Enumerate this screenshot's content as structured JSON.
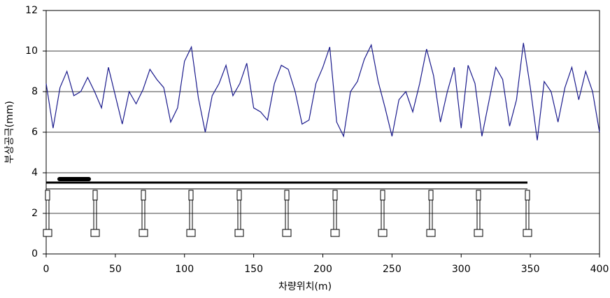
{
  "chart_data": {
    "type": "line",
    "x_label": "차량위치(m)",
    "y_label": "부상공극(mm)",
    "x": [
      0,
      5,
      10,
      15,
      20,
      25,
      30,
      35,
      40,
      45,
      50,
      55,
      60,
      65,
      70,
      75,
      80,
      85,
      90,
      95,
      100,
      105,
      110,
      115,
      120,
      125,
      130,
      135,
      140,
      145,
      150,
      155,
      160,
      165,
      170,
      175,
      180,
      185,
      190,
      195,
      200,
      205,
      210,
      215,
      220,
      225,
      230,
      235,
      240,
      245,
      250,
      255,
      260,
      265,
      270,
      275,
      280,
      285,
      290,
      295,
      300,
      305,
      310,
      315,
      320,
      325,
      330,
      335,
      340,
      345,
      350,
      355,
      360,
      365,
      370,
      375,
      380,
      385,
      390,
      395,
      400
    ],
    "series": [
      {
        "color": "#1a1a8c",
        "values": [
          8.4,
          6.2,
          8.2,
          9.0,
          7.8,
          8.0,
          8.7,
          8.0,
          7.2,
          9.2,
          7.8,
          6.4,
          8.0,
          7.4,
          8.1,
          9.1,
          8.6,
          8.2,
          6.5,
          7.2,
          9.5,
          10.2,
          7.7,
          6.0,
          7.8,
          8.4,
          9.3,
          7.8,
          8.4,
          9.4,
          7.2,
          7.0,
          6.6,
          8.4,
          9.3,
          9.1,
          8.0,
          6.4,
          6.6,
          8.4,
          9.2,
          10.2,
          6.5,
          5.8,
          8.0,
          8.5,
          9.6,
          10.3,
          8.5,
          7.2,
          5.8,
          7.6,
          8.0,
          7.0,
          8.4,
          10.1,
          8.8,
          6.5,
          8.0,
          9.2,
          6.2,
          9.3,
          8.4,
          5.8,
          7.5,
          9.2,
          8.6,
          6.3,
          7.6,
          10.4,
          8.2,
          5.6,
          8.5,
          8.0,
          6.5,
          8.2,
          9.2,
          7.6,
          9.0,
          8.0,
          6.0
        ]
      }
    ],
    "xlim": [
      0,
      400
    ],
    "xticks": [
      0,
      50,
      100,
      150,
      200,
      250,
      300,
      350,
      400
    ],
    "ylim": [
      0,
      12
    ],
    "yticks": [
      0,
      2,
      4,
      6,
      8,
      10,
      12
    ],
    "grid": true
  }
}
